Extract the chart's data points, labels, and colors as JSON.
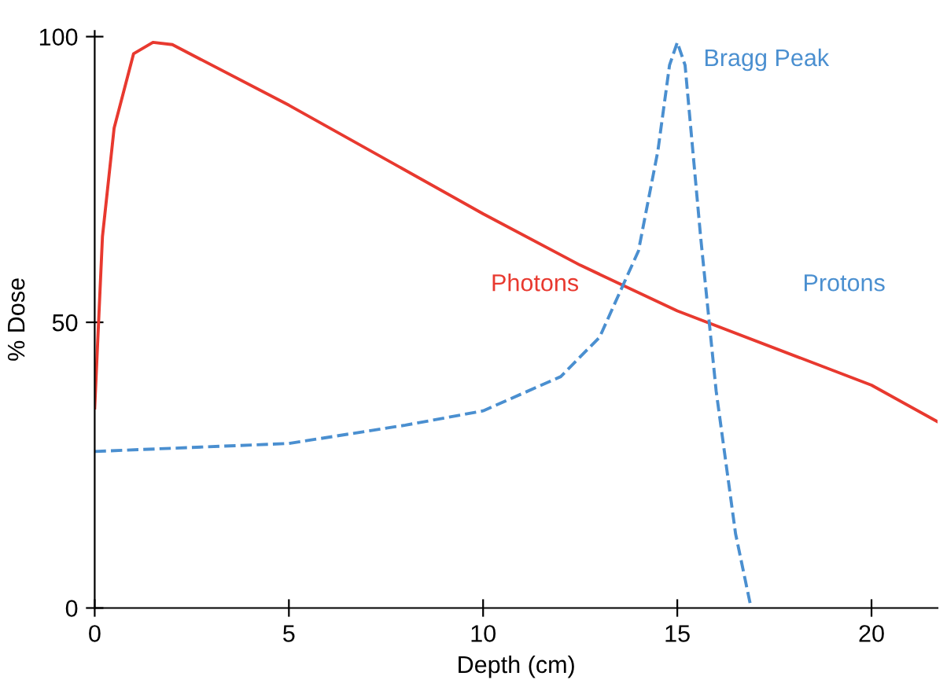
{
  "chart_data": {
    "type": "line",
    "xlabel": "Depth (cm)",
    "ylabel": "% Dose",
    "xlim": [
      0,
      21.7
    ],
    "ylim": [
      0,
      101
    ],
    "xticks": [
      0,
      5,
      10,
      15,
      20
    ],
    "yticks": [
      0,
      50,
      100
    ],
    "grid": false,
    "legend": false,
    "series": [
      {
        "name": "Photons",
        "color": "#e8392f",
        "line_style": "solid",
        "x": [
          0,
          0.2,
          0.5,
          1,
          1.5,
          2,
          5,
          10,
          12.5,
          15,
          20,
          21.7
        ],
        "values": [
          35,
          65,
          84,
          97,
          99,
          98.6,
          88,
          69,
          60,
          52,
          39,
          32.6
        ]
      },
      {
        "name": "Protons",
        "color": "#4a8fd0",
        "line_style": "dashed",
        "x": [
          0,
          5,
          8,
          10,
          12,
          13,
          14,
          14.5,
          14.8,
          15,
          15.2,
          15.6,
          16,
          16.5,
          16.9
        ],
        "values": [
          27.4,
          28.8,
          32,
          34.5,
          40.5,
          47.4,
          62.5,
          80,
          95,
          99,
          95,
          65,
          38,
          13,
          0
        ]
      }
    ],
    "annotations": [
      {
        "text": "Bragg Peak",
        "x": 15,
        "y": 99
      }
    ]
  }
}
